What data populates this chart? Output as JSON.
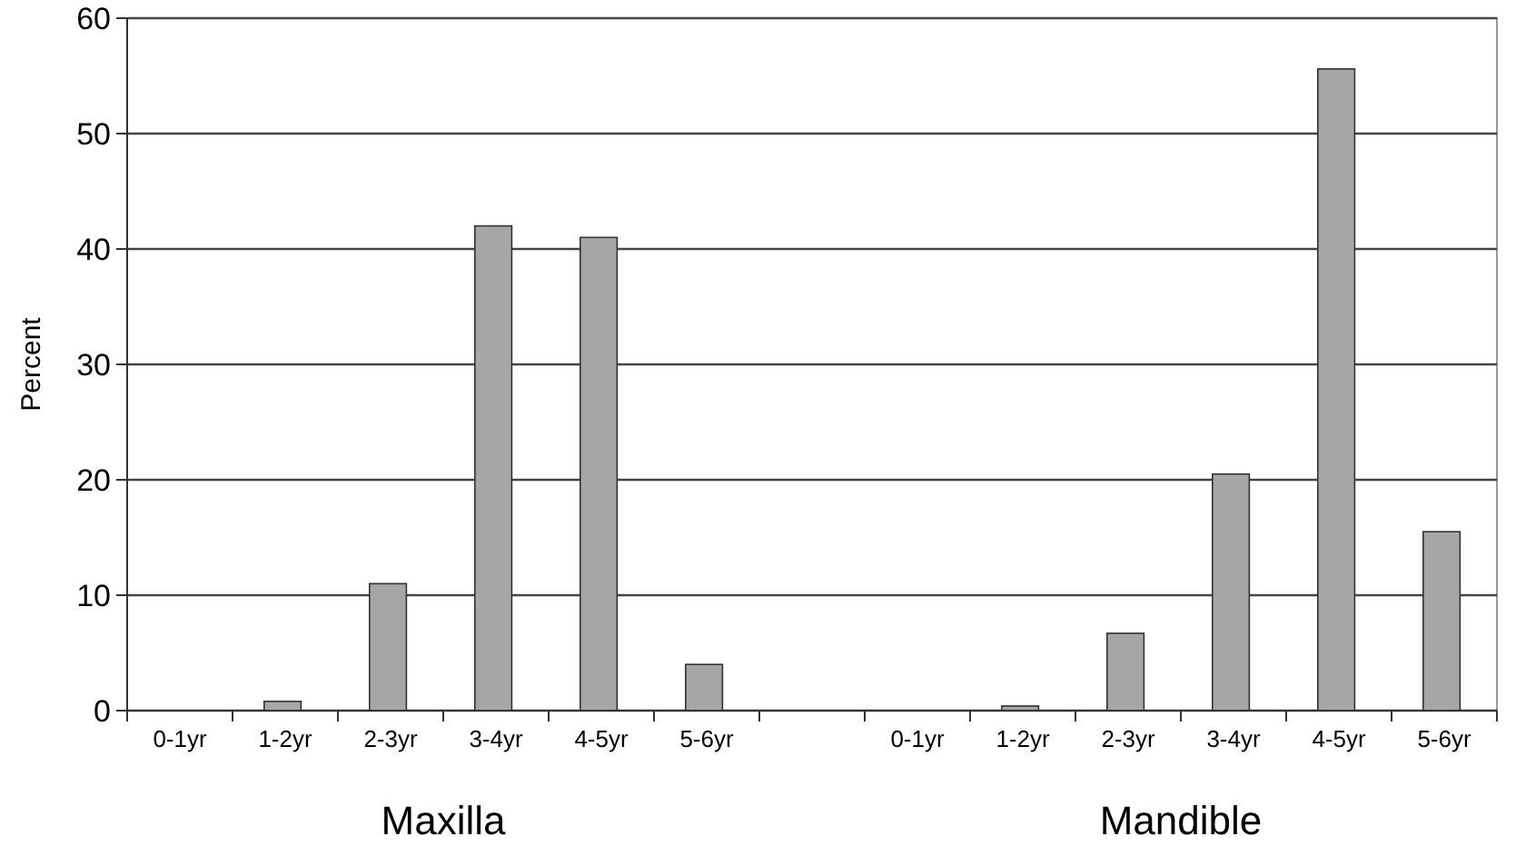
{
  "chart_data": {
    "type": "bar",
    "ylabel": "Percent",
    "categories": [
      "0-1yr",
      "1-2yr",
      "2-3yr",
      "3-4yr",
      "4-5yr",
      "5-6yr",
      null,
      "0-1yr",
      "1-2yr",
      "2-3yr",
      "3-4yr",
      "4-5yr",
      "5-6yr"
    ],
    "values": [
      0,
      0.8,
      11,
      42,
      41,
      4,
      null,
      0,
      0.4,
      6.7,
      20.5,
      55.6,
      15.5
    ],
    "color": "#a6a6a6",
    "ylim": [
      0,
      60
    ],
    "yticks": [
      0,
      10,
      20,
      30,
      40,
      50,
      60
    ],
    "grid": "y",
    "annotations": [
      "Maxilla",
      "Mandible"
    ]
  }
}
